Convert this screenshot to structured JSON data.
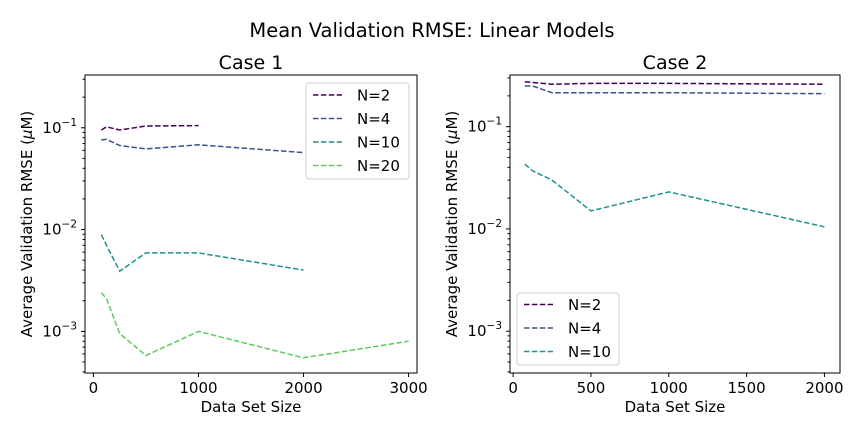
{
  "figure": {
    "title": "Mean Validation RMSE: Linear Models"
  },
  "chart_data": [
    {
      "type": "line",
      "title": "Case 1",
      "xlabel": "Data Set Size",
      "ylabel": "Average Validation RMSE (μM)",
      "ylabel_main": "Average Validation RMSE (",
      "ylabel_mu": "μ",
      "ylabel_tail": "M)",
      "xlim": [
        -80,
        3080
      ],
      "ylim": [
        0.00039,
        0.33
      ],
      "y_scale": "log",
      "xticks": [
        0,
        1000,
        2000,
        3000
      ],
      "xtick_labels": [
        "0",
        "1000",
        "2000",
        "3000"
      ],
      "yticks": [
        0.001,
        0.01,
        0.1
      ],
      "ytick_labels": [
        {
          "base": "10",
          "exp": "−3"
        },
        {
          "base": "10",
          "exp": "−2"
        },
        {
          "base": "10",
          "exp": "−1"
        }
      ],
      "grid": false,
      "legend_position": "top-right",
      "series": [
        {
          "name": "N=2",
          "color": "#440154",
          "x": [
            75,
            125,
            250,
            500,
            1000
          ],
          "y": [
            0.095,
            0.102,
            0.095,
            0.104,
            0.105
          ]
        },
        {
          "name": "N=4",
          "color": "#3b528b",
          "x": [
            75,
            125,
            250,
            500,
            1000,
            2000
          ],
          "y": [
            0.076,
            0.077,
            0.067,
            0.062,
            0.068,
            0.057
          ]
        },
        {
          "name": "N=10",
          "color": "#21918c",
          "x": [
            75,
            125,
            250,
            500,
            1000,
            2000
          ],
          "y": [
            0.0089,
            0.007,
            0.0039,
            0.0059,
            0.0059,
            0.004
          ]
        },
        {
          "name": "N=20",
          "color": "#5ec962",
          "x": [
            75,
            125,
            250,
            500,
            1000,
            2000,
            3000
          ],
          "y": [
            0.0024,
            0.0021,
            0.00095,
            0.00058,
            0.001,
            0.00055,
            0.0008
          ]
        }
      ]
    },
    {
      "type": "line",
      "title": "Case 2",
      "xlabel": "Data Set Size",
      "ylabel": "Average Validation RMSE (μM)",
      "ylabel_main": "Average Validation RMSE (",
      "ylabel_mu": "μ",
      "ylabel_tail": "M)",
      "xlim": [
        -20,
        2100
      ],
      "ylim": [
        0.00039,
        0.32
      ],
      "y_scale": "log",
      "xticks": [
        0,
        500,
        1000,
        1500,
        2000
      ],
      "xtick_labels": [
        "0",
        "500",
        "1000",
        "1500",
        "2000"
      ],
      "yticks": [
        0.001,
        0.01,
        0.1
      ],
      "ytick_labels": [
        {
          "base": "10",
          "exp": "−3"
        },
        {
          "base": "10",
          "exp": "−2"
        },
        {
          "base": "10",
          "exp": "−1"
        }
      ],
      "grid": false,
      "legend_position": "bottom-left",
      "series": [
        {
          "name": "N=2",
          "color": "#440154",
          "x": [
            75,
            125,
            250,
            500,
            1000,
            2000
          ],
          "y": [
            0.275,
            0.27,
            0.26,
            0.265,
            0.265,
            0.26
          ]
        },
        {
          "name": "N=4",
          "color": "#3b528b",
          "x": [
            75,
            125,
            250,
            500,
            1000,
            2000
          ],
          "y": [
            0.25,
            0.25,
            0.215,
            0.215,
            0.215,
            0.21
          ]
        },
        {
          "name": "N=10",
          "color": "#21918c",
          "x": [
            75,
            125,
            250,
            500,
            1000,
            2000
          ],
          "y": [
            0.043,
            0.037,
            0.03,
            0.015,
            0.023,
            0.0105
          ]
        }
      ]
    }
  ]
}
